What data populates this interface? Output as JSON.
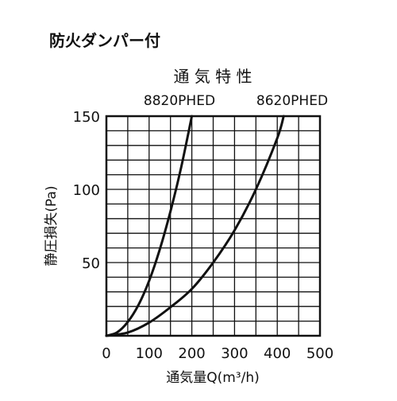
{
  "header": "防火ダンパー付",
  "chart_data": {
    "type": "line",
    "title": "通 気 特 性",
    "xlabel": "通気量Q(m³/h)",
    "ylabel": "静圧損失(Pa)",
    "xlim": [
      0,
      500
    ],
    "ylim": [
      0,
      150
    ],
    "x_ticks": [
      "0",
      "100",
      "200",
      "300",
      "400",
      "500"
    ],
    "y_ticks": [
      "50",
      "100",
      "150"
    ],
    "grid": true,
    "series": [
      {
        "name": "8820PHED",
        "x": [
          0,
          25,
          50,
          75,
          100,
          125,
          150,
          175,
          200
        ],
        "y": [
          0,
          2.3,
          9.4,
          21,
          37.5,
          59,
          85,
          115,
          150
        ]
      },
      {
        "name": "8620PHED",
        "x": [
          0,
          50,
          100,
          150,
          200,
          250,
          300,
          350,
          400,
          415
        ],
        "y": [
          0,
          2.2,
          9,
          19.5,
          32,
          50,
          72,
          100,
          135,
          150
        ]
      }
    ]
  }
}
